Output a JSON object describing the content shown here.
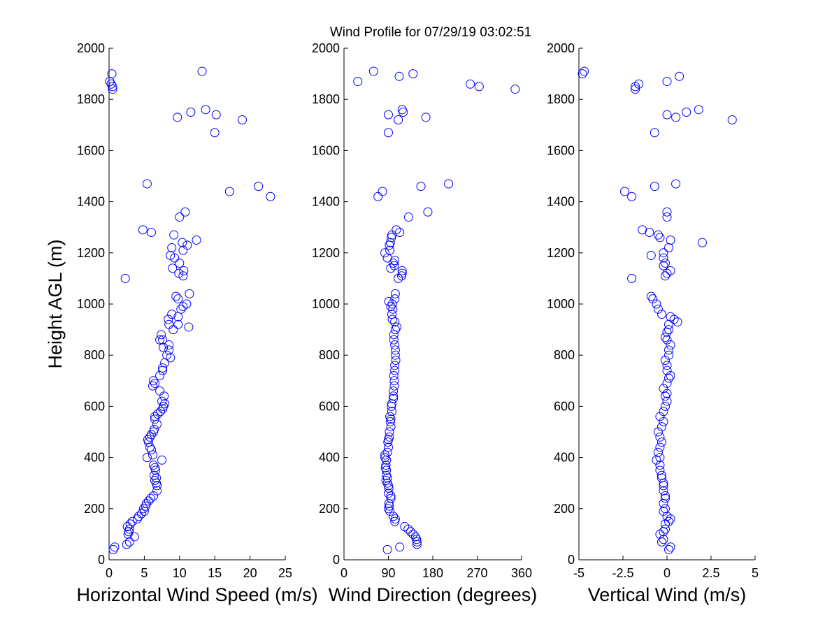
{
  "title": "Wind Profile for  07/29/19 03:02:51",
  "colors": {
    "marker": "#0000ff",
    "axes": "#000000",
    "background": "#ffffff"
  },
  "chart_data": [
    {
      "type": "scatter",
      "panel": "left",
      "xlabel": "Horizontal Wind Speed (m/s)",
      "ylabel": "Height AGL (m)",
      "xlim": [
        0,
        25
      ],
      "ylim": [
        0,
        2000
      ],
      "xticks": [
        "0",
        "5",
        "10",
        "15",
        "20",
        "25"
      ],
      "xtick_values": [
        0,
        5,
        10,
        15,
        20,
        25
      ],
      "yticks": [
        "0",
        "200",
        "400",
        "600",
        "800",
        "1000",
        "1200",
        "1400",
        "1600",
        "1800",
        "2000"
      ],
      "ytick_values": [
        0,
        200,
        400,
        600,
        800,
        1000,
        1200,
        1400,
        1600,
        1800,
        2000
      ],
      "points": [
        [
          0.8,
          50
        ],
        [
          0.6,
          40
        ],
        [
          2.5,
          60
        ],
        [
          2.9,
          70
        ],
        [
          3.6,
          90
        ],
        [
          2.7,
          100
        ],
        [
          2.8,
          110
        ],
        [
          2.9,
          120
        ],
        [
          2.6,
          130
        ],
        [
          3.0,
          140
        ],
        [
          3.3,
          150
        ],
        [
          4.0,
          160
        ],
        [
          4.2,
          170
        ],
        [
          4.6,
          180
        ],
        [
          5.0,
          190
        ],
        [
          4.9,
          200
        ],
        [
          5.2,
          210
        ],
        [
          5.3,
          220
        ],
        [
          5.6,
          230
        ],
        [
          5.9,
          240
        ],
        [
          6.3,
          250
        ],
        [
          6.8,
          270
        ],
        [
          6.8,
          290
        ],
        [
          6.7,
          300
        ],
        [
          6.5,
          310
        ],
        [
          6.7,
          320
        ],
        [
          6.4,
          330
        ],
        [
          6.6,
          350
        ],
        [
          6.5,
          360
        ],
        [
          6.3,
          370
        ],
        [
          7.5,
          390
        ],
        [
          5.4,
          400
        ],
        [
          6.2,
          410
        ],
        [
          6.0,
          430
        ],
        [
          5.8,
          440
        ],
        [
          5.6,
          460
        ],
        [
          5.5,
          470
        ],
        [
          5.8,
          480
        ],
        [
          6.0,
          490
        ],
        [
          6.3,
          500
        ],
        [
          6.4,
          510
        ],
        [
          6.8,
          530
        ],
        [
          6.5,
          550
        ],
        [
          6.5,
          560
        ],
        [
          6.9,
          570
        ],
        [
          7.3,
          580
        ],
        [
          7.6,
          590
        ],
        [
          7.7,
          600
        ],
        [
          7.9,
          610
        ],
        [
          7.5,
          620
        ],
        [
          7.8,
          640
        ],
        [
          7.2,
          660
        ],
        [
          6.2,
          680
        ],
        [
          6.5,
          690
        ],
        [
          6.3,
          700
        ],
        [
          7.2,
          720
        ],
        [
          7.6,
          740
        ],
        [
          7.6,
          750
        ],
        [
          7.9,
          770
        ],
        [
          8.7,
          790
        ],
        [
          8.2,
          800
        ],
        [
          8.5,
          820
        ],
        [
          7.7,
          830
        ],
        [
          8.5,
          840
        ],
        [
          7.6,
          860
        ],
        [
          7.2,
          860
        ],
        [
          7.4,
          880
        ],
        [
          9.1,
          900
        ],
        [
          11.3,
          910
        ],
        [
          8.5,
          920
        ],
        [
          9.8,
          920
        ],
        [
          8.4,
          940
        ],
        [
          9.8,
          950
        ],
        [
          8.9,
          960
        ],
        [
          10.2,
          980
        ],
        [
          10.5,
          990
        ],
        [
          11.0,
          1000
        ],
        [
          9.8,
          1020
        ],
        [
          9.5,
          1030
        ],
        [
          11.4,
          1040
        ],
        [
          10.5,
          1110
        ],
        [
          9.9,
          1120
        ],
        [
          10.6,
          1130
        ],
        [
          10.0,
          1160
        ],
        [
          9.0,
          1140
        ],
        [
          9.3,
          1180
        ],
        [
          8.7,
          1190
        ],
        [
          2.3,
          1100
        ],
        [
          10.5,
          1210
        ],
        [
          11.1,
          1230
        ],
        [
          8.9,
          1220
        ],
        [
          10.4,
          1240
        ],
        [
          12.4,
          1250
        ],
        [
          9.2,
          1270
        ],
        [
          6.0,
          1280
        ],
        [
          4.8,
          1290
        ],
        [
          10.0,
          1340
        ],
        [
          10.8,
          1360
        ],
        [
          22.9,
          1420
        ],
        [
          17.1,
          1440
        ],
        [
          21.2,
          1460
        ],
        [
          5.4,
          1470
        ],
        [
          15.0,
          1670
        ],
        [
          18.9,
          1720
        ],
        [
          9.7,
          1730
        ],
        [
          15.2,
          1740
        ],
        [
          11.6,
          1750
        ],
        [
          13.7,
          1760
        ],
        [
          0.5,
          1840
        ],
        [
          0.5,
          1850
        ],
        [
          0.3,
          1860
        ],
        [
          0.1,
          1870
        ],
        [
          0.4,
          1900
        ],
        [
          13.2,
          1910
        ]
      ]
    },
    {
      "type": "scatter",
      "panel": "middle",
      "xlabel": "Wind Direction (degrees)",
      "xlim": [
        0,
        360
      ],
      "ylim": [
        0,
        2000
      ],
      "xticks": [
        "0",
        "90",
        "180",
        "270",
        "360"
      ],
      "xtick_values": [
        0,
        90,
        180,
        270,
        360
      ],
      "yticks": [
        "0",
        "200",
        "400",
        "600",
        "800",
        "1000",
        "1200",
        "1400",
        "1600",
        "1800",
        "2000"
      ],
      "ytick_values": [
        0,
        200,
        400,
        600,
        800,
        1000,
        1200,
        1400,
        1600,
        1800,
        2000
      ],
      "points": [
        [
          88,
          40
        ],
        [
          113,
          50
        ],
        [
          148,
          60
        ],
        [
          148,
          70
        ],
        [
          147,
          80
        ],
        [
          145,
          90
        ],
        [
          140,
          100
        ],
        [
          135,
          110
        ],
        [
          130,
          120
        ],
        [
          123,
          130
        ],
        [
          103,
          150
        ],
        [
          104,
          160
        ],
        [
          100,
          170
        ],
        [
          93,
          190
        ],
        [
          90,
          200
        ],
        [
          92,
          210
        ],
        [
          91,
          220
        ],
        [
          95,
          240
        ],
        [
          95,
          250
        ],
        [
          90,
          260
        ],
        [
          91,
          280
        ],
        [
          90,
          290
        ],
        [
          88,
          300
        ],
        [
          85,
          310
        ],
        [
          88,
          320
        ],
        [
          86,
          330
        ],
        [
          86,
          350
        ],
        [
          84,
          360
        ],
        [
          85,
          370
        ],
        [
          86,
          390
        ],
        [
          83,
          400
        ],
        [
          83,
          410
        ],
        [
          88,
          420
        ],
        [
          90,
          440
        ],
        [
          89,
          460
        ],
        [
          90,
          470
        ],
        [
          92,
          480
        ],
        [
          92,
          500
        ],
        [
          95,
          520
        ],
        [
          94,
          540
        ],
        [
          95,
          550
        ],
        [
          93,
          560
        ],
        [
          97,
          580
        ],
        [
          96,
          600
        ],
        [
          97,
          610
        ],
        [
          100,
          630
        ],
        [
          100,
          640
        ],
        [
          100,
          660
        ],
        [
          102,
          680
        ],
        [
          102,
          700
        ],
        [
          101,
          720
        ],
        [
          103,
          740
        ],
        [
          103,
          760
        ],
        [
          105,
          780
        ],
        [
          104,
          800
        ],
        [
          104,
          820
        ],
        [
          103,
          840
        ],
        [
          101,
          860
        ],
        [
          101,
          880
        ],
        [
          104,
          900
        ],
        [
          107,
          910
        ],
        [
          103,
          930
        ],
        [
          98,
          940
        ],
        [
          97,
          960
        ],
        [
          99,
          980
        ],
        [
          95,
          990
        ],
        [
          98,
          1000
        ],
        [
          91,
          1010
        ],
        [
          103,
          1020
        ],
        [
          104,
          1040
        ],
        [
          117,
          1110
        ],
        [
          118,
          1120
        ],
        [
          118,
          1130
        ],
        [
          102,
          1150
        ],
        [
          100,
          1160
        ],
        [
          95,
          1140
        ],
        [
          103,
          1170
        ],
        [
          88,
          1180
        ],
        [
          110,
          1100
        ],
        [
          83,
          1200
        ],
        [
          93,
          1210
        ],
        [
          92,
          1230
        ],
        [
          94,
          1240
        ],
        [
          96,
          1260
        ],
        [
          97,
          1270
        ],
        [
          113,
          1280
        ],
        [
          106,
          1290
        ],
        [
          131,
          1340
        ],
        [
          170,
          1360
        ],
        [
          69,
          1420
        ],
        [
          78,
          1440
        ],
        [
          156,
          1460
        ],
        [
          212,
          1470
        ],
        [
          90,
          1670
        ],
        [
          110,
          1720
        ],
        [
          166,
          1730
        ],
        [
          90,
          1740
        ],
        [
          120,
          1750
        ],
        [
          118,
          1760
        ],
        [
          347,
          1840
        ],
        [
          274,
          1850
        ],
        [
          256,
          1860
        ],
        [
          28,
          1870
        ],
        [
          140,
          1900
        ],
        [
          112,
          1890
        ],
        [
          60,
          1910
        ]
      ]
    },
    {
      "type": "scatter",
      "panel": "right",
      "xlabel": "Vertical Wind (m/s)",
      "xlim": [
        -5,
        5
      ],
      "ylim": [
        0,
        2000
      ],
      "xticks": [
        "-5",
        "-2.5",
        "0",
        "2.5",
        "5"
      ],
      "xtick_values": [
        -5,
        -2.5,
        0,
        2.5,
        5
      ],
      "yticks": [
        "0",
        "200",
        "400",
        "600",
        "800",
        "1000",
        "1200",
        "1400",
        "1600",
        "1800",
        "2000"
      ],
      "ytick_values": [
        0,
        200,
        400,
        600,
        800,
        1000,
        1200,
        1400,
        1600,
        1800,
        2000
      ],
      "points": [
        [
          0.1,
          40
        ],
        [
          0.2,
          50
        ],
        [
          -0.3,
          70
        ],
        [
          -0.2,
          80
        ],
        [
          -0.4,
          100
        ],
        [
          -0.2,
          110
        ],
        [
          -0.1,
          120
        ],
        [
          -0.1,
          140
        ],
        [
          0.1,
          150
        ],
        [
          0.2,
          160
        ],
        [
          0.0,
          170
        ],
        [
          -0.2,
          190
        ],
        [
          -0.1,
          200
        ],
        [
          -0.2,
          220
        ],
        [
          -0.1,
          240
        ],
        [
          -0.1,
          250
        ],
        [
          -0.2,
          270
        ],
        [
          -0.2,
          290
        ],
        [
          -0.2,
          300
        ],
        [
          -0.3,
          320
        ],
        [
          -0.3,
          330
        ],
        [
          -0.4,
          350
        ],
        [
          -0.4,
          370
        ],
        [
          -0.6,
          390
        ],
        [
          -0.4,
          400
        ],
        [
          -0.5,
          420
        ],
        [
          -0.4,
          440
        ],
        [
          -0.3,
          460
        ],
        [
          -0.4,
          480
        ],
        [
          -0.5,
          500
        ],
        [
          -0.3,
          520
        ],
        [
          -0.2,
          540
        ],
        [
          -0.4,
          560
        ],
        [
          -0.2,
          580
        ],
        [
          -0.1,
          600
        ],
        [
          0.0,
          620
        ],
        [
          -0.1,
          640
        ],
        [
          0.0,
          650
        ],
        [
          -0.2,
          670
        ],
        [
          0.0,
          690
        ],
        [
          0.1,
          710
        ],
        [
          0.2,
          720
        ],
        [
          0.0,
          740
        ],
        [
          0.0,
          760
        ],
        [
          -0.1,
          780
        ],
        [
          0.1,
          800
        ],
        [
          0.1,
          820
        ],
        [
          0.2,
          840
        ],
        [
          0.0,
          860
        ],
        [
          -0.1,
          870
        ],
        [
          0.0,
          890
        ],
        [
          0.1,
          900
        ],
        [
          0.1,
          920
        ],
        [
          0.6,
          930
        ],
        [
          0.4,
          940
        ],
        [
          0.2,
          950
        ],
        [
          -0.3,
          960
        ],
        [
          -0.5,
          980
        ],
        [
          -0.6,
          1000
        ],
        [
          -0.8,
          1020
        ],
        [
          -0.9,
          1030
        ],
        [
          -0.1,
          1110
        ],
        [
          0.0,
          1120
        ],
        [
          0.2,
          1130
        ],
        [
          -0.2,
          1150
        ],
        [
          -0.1,
          1160
        ],
        [
          -0.2,
          1180
        ],
        [
          -0.9,
          1190
        ],
        [
          -0.2,
          1200
        ],
        [
          -2.0,
          1100
        ],
        [
          0.1,
          1220
        ],
        [
          2.0,
          1240
        ],
        [
          0.2,
          1250
        ],
        [
          -0.4,
          1260
        ],
        [
          -0.5,
          1270
        ],
        [
          -1.0,
          1280
        ],
        [
          -1.4,
          1290
        ],
        [
          0.0,
          1340
        ],
        [
          0.0,
          1360
        ],
        [
          -2.0,
          1420
        ],
        [
          -2.4,
          1440
        ],
        [
          -0.7,
          1460
        ],
        [
          0.5,
          1470
        ],
        [
          -0.7,
          1670
        ],
        [
          3.7,
          1720
        ],
        [
          0.5,
          1730
        ],
        [
          0.0,
          1740
        ],
        [
          1.1,
          1750
        ],
        [
          1.8,
          1760
        ],
        [
          -1.8,
          1840
        ],
        [
          -1.8,
          1850
        ],
        [
          -1.6,
          1860
        ],
        [
          0.0,
          1870
        ],
        [
          -4.8,
          1900
        ],
        [
          -4.7,
          1910
        ],
        [
          0.7,
          1890
        ]
      ]
    }
  ]
}
